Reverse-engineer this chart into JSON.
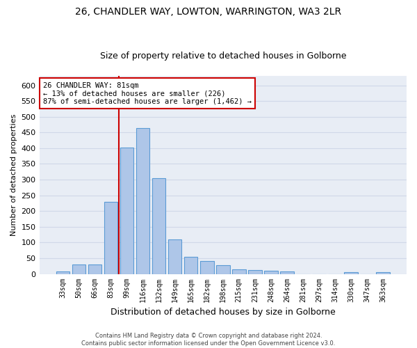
{
  "title_line1": "26, CHANDLER WAY, LOWTON, WARRINGTON, WA3 2LR",
  "title_line2": "Size of property relative to detached houses in Golborne",
  "xlabel": "Distribution of detached houses by size in Golborne",
  "ylabel": "Number of detached properties",
  "bar_labels": [
    "33sqm",
    "50sqm",
    "66sqm",
    "83sqm",
    "99sqm",
    "116sqm",
    "132sqm",
    "149sqm",
    "165sqm",
    "182sqm",
    "198sqm",
    "215sqm",
    "231sqm",
    "248sqm",
    "264sqm",
    "281sqm",
    "297sqm",
    "314sqm",
    "330sqm",
    "347sqm",
    "363sqm"
  ],
  "bar_values": [
    7,
    30,
    30,
    230,
    402,
    463,
    305,
    110,
    54,
    40,
    27,
    14,
    12,
    10,
    7,
    0,
    0,
    0,
    5,
    0,
    5
  ],
  "bar_color": "#aec6e8",
  "bar_edge_color": "#5b9bd5",
  "annotation_text": "26 CHANDLER WAY: 81sqm\n← 13% of detached houses are smaller (226)\n87% of semi-detached houses are larger (1,462) →",
  "annotation_box_color": "#ffffff",
  "annotation_box_edge_color": "#cc0000",
  "vline_color": "#cc0000",
  "ylim": [
    0,
    630
  ],
  "yticks": [
    0,
    50,
    100,
    150,
    200,
    250,
    300,
    350,
    400,
    450,
    500,
    550,
    600
  ],
  "grid_color": "#d0d8e8",
  "background_color": "#e8edf5",
  "footer_line1": "Contains HM Land Registry data © Crown copyright and database right 2024.",
  "footer_line2": "Contains public sector information licensed under the Open Government Licence v3.0.",
  "title_fontsize": 10,
  "subtitle_fontsize": 9,
  "ylabel_fontsize": 8,
  "xlabel_fontsize": 9,
  "bar_width": 0.85,
  "figsize": [
    6.0,
    5.0
  ],
  "dpi": 100,
  "vline_x_index": 3.5
}
